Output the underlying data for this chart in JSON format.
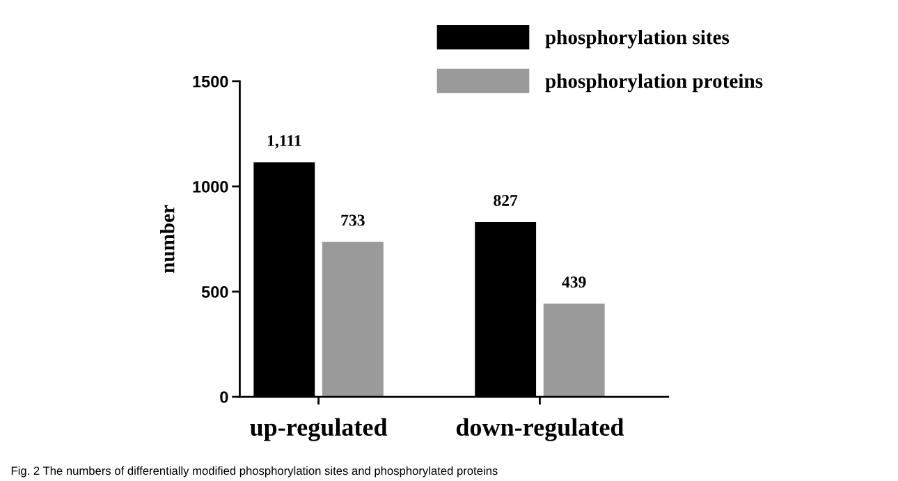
{
  "chart_data": {
    "type": "bar",
    "categories": [
      "up-regulated",
      "down-regulated"
    ],
    "ylabel": "number",
    "series": [
      {
        "name": "phosphorylation sites",
        "color": "#000000",
        "values": [
          1111,
          827
        ],
        "value_labels": [
          "1,111",
          "827"
        ]
      },
      {
        "name": "phosphorylation proteins",
        "color": "#9a9a9a",
        "values": [
          733,
          439
        ],
        "value_labels": [
          "733",
          "439"
        ]
      }
    ],
    "ylim": [
      0,
      1500
    ],
    "yticks": [
      0,
      500,
      1000,
      1500
    ],
    "grid": false,
    "legend": "top right",
    "annotations": [
      "Fig. 2 The numbers of differentially modified phosphorylation sites and phosphorylated proteins"
    ]
  }
}
